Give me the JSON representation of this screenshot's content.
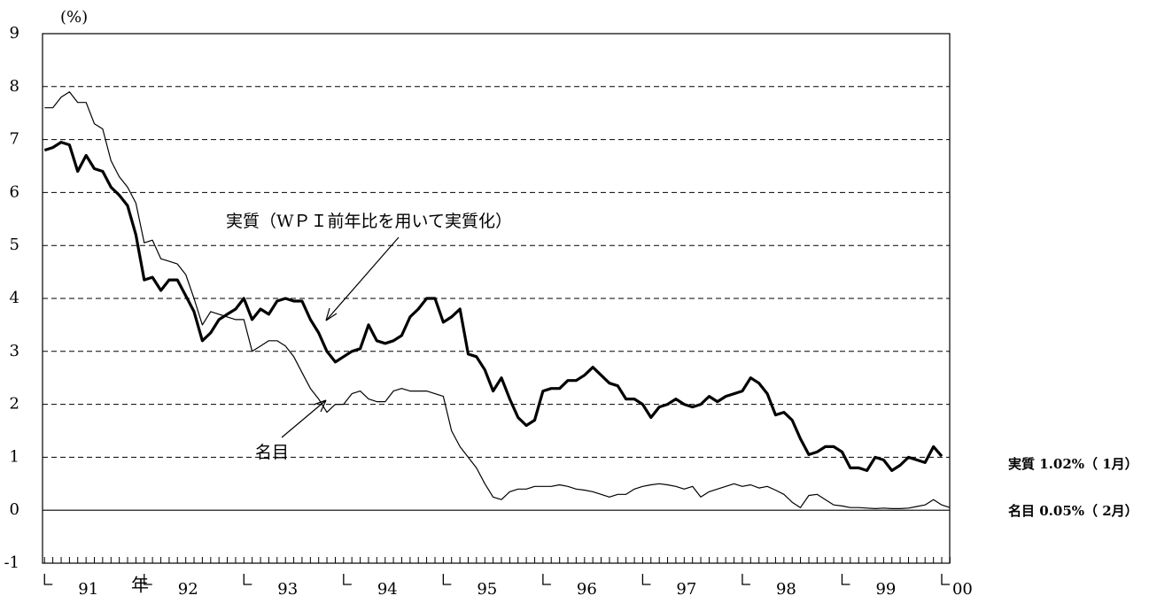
{
  "chart_data": {
    "type": "line",
    "y_unit_label": "(%)",
    "x_unit_label": "年",
    "x": [
      91,
      91.083,
      91.167,
      91.25,
      91.333,
      91.417,
      91.5,
      91.583,
      91.667,
      91.75,
      91.833,
      91.917,
      92,
      92.083,
      92.167,
      92.25,
      92.333,
      92.417,
      92.5,
      92.583,
      92.667,
      92.75,
      92.833,
      92.917,
      93,
      93.083,
      93.167,
      93.25,
      93.333,
      93.417,
      93.5,
      93.583,
      93.667,
      93.75,
      93.833,
      93.917,
      94,
      94.083,
      94.167,
      94.25,
      94.333,
      94.417,
      94.5,
      94.583,
      94.667,
      94.75,
      94.833,
      94.917,
      95,
      95.083,
      95.167,
      95.25,
      95.333,
      95.417,
      95.5,
      95.583,
      95.667,
      95.75,
      95.833,
      95.917,
      96,
      96.083,
      96.167,
      96.25,
      96.333,
      96.417,
      96.5,
      96.583,
      96.667,
      96.75,
      96.833,
      96.917,
      97,
      97.083,
      97.167,
      97.25,
      97.333,
      97.417,
      97.5,
      97.583,
      97.667,
      97.75,
      97.833,
      97.917,
      98,
      98.083,
      98.167,
      98.25,
      98.333,
      98.417,
      98.5,
      98.583,
      98.667,
      98.75,
      98.833,
      98.917,
      99,
      99.083,
      99.167,
      99.25,
      99.333,
      99.417,
      99.5,
      99.583,
      99.667,
      99.75,
      99.833,
      99.917,
      100,
      100.083
    ],
    "series": [
      {
        "name": "実質",
        "color": "#000000",
        "width": 3.2,
        "values": [
          6.8,
          6.85,
          6.95,
          6.9,
          6.4,
          6.7,
          6.45,
          6.4,
          6.1,
          5.95,
          5.75,
          5.2,
          4.35,
          4.4,
          4.15,
          4.35,
          4.35,
          4.05,
          3.75,
          3.2,
          3.35,
          3.6,
          3.7,
          3.8,
          4.0,
          3.6,
          3.8,
          3.7,
          3.95,
          4.0,
          3.95,
          3.95,
          3.6,
          3.35,
          3.0,
          2.8,
          2.9,
          3.0,
          3.05,
          3.5,
          3.2,
          3.15,
          3.2,
          3.3,
          3.65,
          3.8,
          4.0,
          4.0,
          3.55,
          3.65,
          3.8,
          2.95,
          2.9,
          2.65,
          2.25,
          2.5,
          2.1,
          1.75,
          1.6,
          1.7,
          2.25,
          2.3,
          2.3,
          2.45,
          2.45,
          2.55,
          2.7,
          2.55,
          2.4,
          2.35,
          2.1,
          2.1,
          2.0,
          1.75,
          1.95,
          2.0,
          2.1,
          2.0,
          1.95,
          2.0,
          2.15,
          2.05,
          2.15,
          2.2,
          2.25,
          2.5,
          2.4,
          2.2,
          1.8,
          1.85,
          1.7,
          1.35,
          1.05,
          1.1,
          1.2,
          1.2,
          1.1,
          0.8,
          0.8,
          0.75,
          1.0,
          0.95,
          0.75,
          0.85,
          1.0,
          0.95,
          0.9,
          1.2,
          1.02,
          null
        ]
      },
      {
        "name": "名目",
        "color": "#000000",
        "width": 1.2,
        "values": [
          7.6,
          7.6,
          7.8,
          7.9,
          7.7,
          7.7,
          7.3,
          7.2,
          6.6,
          6.3,
          6.1,
          5.8,
          5.05,
          5.1,
          4.75,
          4.7,
          4.65,
          4.45,
          4.0,
          3.5,
          3.75,
          3.7,
          3.65,
          3.6,
          3.6,
          3.0,
          3.1,
          3.2,
          3.2,
          3.1,
          2.9,
          2.6,
          2.3,
          2.1,
          1.85,
          2.0,
          2.0,
          2.2,
          2.25,
          2.1,
          2.05,
          2.05,
          2.25,
          2.3,
          2.25,
          2.25,
          2.25,
          2.2,
          2.15,
          1.5,
          1.2,
          1.0,
          0.8,
          0.5,
          0.25,
          0.2,
          0.35,
          0.4,
          0.4,
          0.45,
          0.45,
          0.45,
          0.48,
          0.45,
          0.4,
          0.38,
          0.35,
          0.3,
          0.25,
          0.3,
          0.3,
          0.4,
          0.45,
          0.48,
          0.5,
          0.48,
          0.45,
          0.4,
          0.45,
          0.25,
          0.35,
          0.4,
          0.45,
          0.5,
          0.45,
          0.48,
          0.42,
          0.45,
          0.38,
          0.3,
          0.15,
          0.05,
          0.28,
          0.3,
          0.2,
          0.1,
          0.08,
          0.05,
          0.05,
          0.04,
          0.03,
          0.04,
          0.03,
          0.03,
          0.04,
          0.07,
          0.1,
          0.2,
          0.1,
          0.05
        ]
      }
    ],
    "annotations": [
      "実質（WＰＩ前年比を用いて実質化）",
      "名目",
      "実質 1.02%（ 1月）",
      "名目 0.05%（ 2月）"
    ],
    "xlim": [
      90.98,
      100.08
    ],
    "xticks": [
      91,
      92,
      93,
      94,
      95,
      96,
      97,
      98,
      99,
      {
        "value": 100,
        "label": "00"
      }
    ],
    "ylim": [
      -1,
      9
    ],
    "yticks": [
      -1,
      0,
      1,
      2,
      3,
      4,
      5,
      6,
      7,
      8,
      9
    ],
    "grid": true
  }
}
